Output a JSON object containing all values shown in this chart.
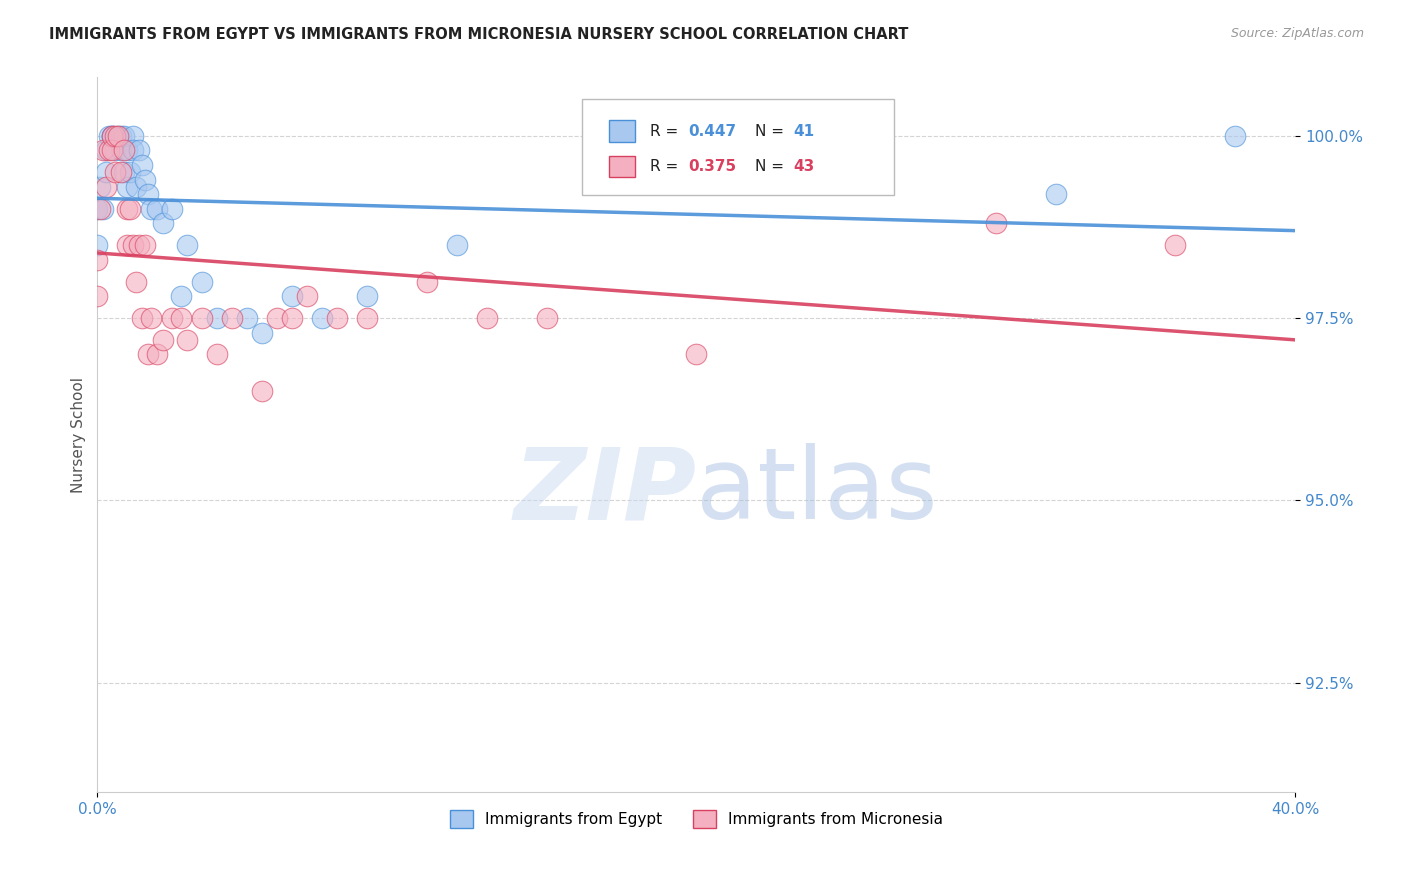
{
  "title": "IMMIGRANTS FROM EGYPT VS IMMIGRANTS FROM MICRONESIA NURSERY SCHOOL CORRELATION CHART",
  "source": "Source: ZipAtlas.com",
  "ylabel": "Nursery School",
  "xlim": [
    0.0,
    0.4
  ],
  "ylim": [
    0.91,
    1.008
  ],
  "xtick_labels": [
    "0.0%",
    "40.0%"
  ],
  "ytick_labels": [
    "92.5%",
    "95.0%",
    "97.5%",
    "100.0%"
  ],
  "ytick_values": [
    0.925,
    0.95,
    0.975,
    1.0
  ],
  "xtick_values": [
    0.0,
    0.4
  ],
  "color_egypt": "#a8c8f0",
  "color_micro": "#f4b0c0",
  "trendline_egypt_color": "#4a90d9",
  "trendline_micro_color": "#d94060",
  "grid_color": "#d0d0d0",
  "watermark_zip": "ZIP",
  "watermark_atlas": "atlas",
  "egypt_x": [
    0.0,
    0.0,
    0.001,
    0.002,
    0.003,
    0.003,
    0.004,
    0.005,
    0.005,
    0.006,
    0.007,
    0.008,
    0.008,
    0.009,
    0.009,
    0.01,
    0.01,
    0.011,
    0.012,
    0.012,
    0.013,
    0.014,
    0.015,
    0.016,
    0.017,
    0.018,
    0.02,
    0.022,
    0.025,
    0.028,
    0.03,
    0.035,
    0.04,
    0.05,
    0.055,
    0.065,
    0.075,
    0.09,
    0.12,
    0.32,
    0.38
  ],
  "egypt_y": [
    0.99,
    0.985,
    0.993,
    0.99,
    0.995,
    0.998,
    1.0,
    1.0,
    1.0,
    0.998,
    1.0,
    1.0,
    0.998,
    1.0,
    0.995,
    0.998,
    0.993,
    0.995,
    1.0,
    0.998,
    0.993,
    0.998,
    0.996,
    0.994,
    0.992,
    0.99,
    0.99,
    0.988,
    0.99,
    0.978,
    0.985,
    0.98,
    0.975,
    0.975,
    0.973,
    0.978,
    0.975,
    0.978,
    0.985,
    0.992,
    1.0
  ],
  "micro_x": [
    0.0,
    0.0,
    0.001,
    0.002,
    0.003,
    0.004,
    0.005,
    0.005,
    0.006,
    0.006,
    0.007,
    0.008,
    0.009,
    0.01,
    0.01,
    0.011,
    0.012,
    0.013,
    0.014,
    0.015,
    0.016,
    0.017,
    0.018,
    0.02,
    0.022,
    0.025,
    0.028,
    0.03,
    0.035,
    0.04,
    0.045,
    0.055,
    0.06,
    0.065,
    0.07,
    0.08,
    0.09,
    0.11,
    0.13,
    0.15,
    0.2,
    0.3,
    0.36
  ],
  "micro_y": [
    0.983,
    0.978,
    0.99,
    0.998,
    0.993,
    0.998,
    1.0,
    0.998,
    1.0,
    0.995,
    1.0,
    0.995,
    0.998,
    0.99,
    0.985,
    0.99,
    0.985,
    0.98,
    0.985,
    0.975,
    0.985,
    0.97,
    0.975,
    0.97,
    0.972,
    0.975,
    0.975,
    0.972,
    0.975,
    0.97,
    0.975,
    0.965,
    0.975,
    0.975,
    0.978,
    0.975,
    0.975,
    0.98,
    0.975,
    0.975,
    0.97,
    0.988,
    0.985
  ]
}
